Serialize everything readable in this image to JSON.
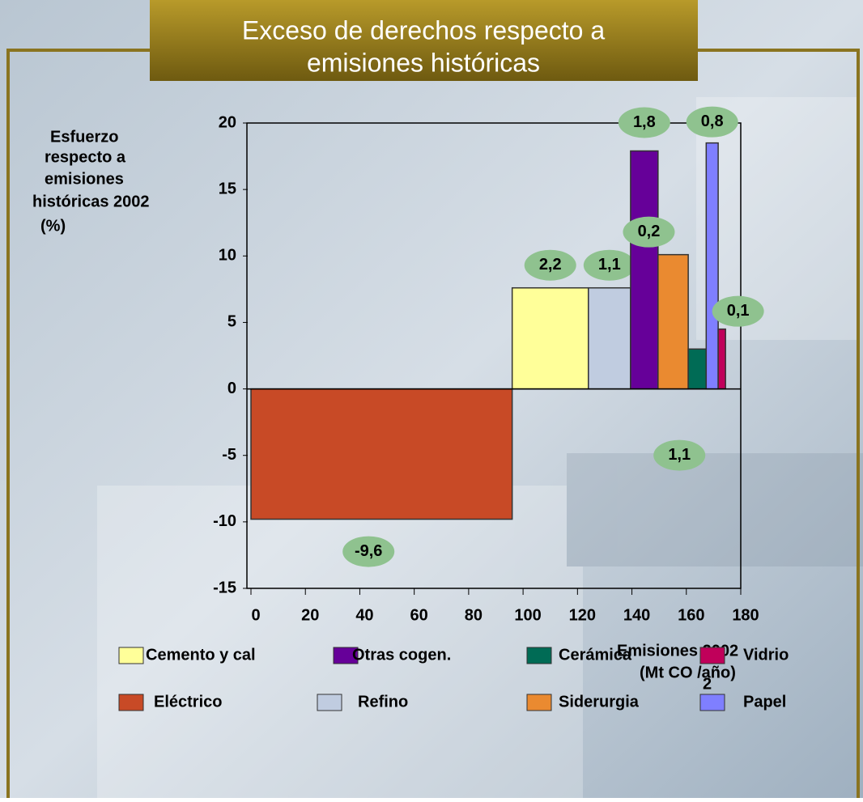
{
  "chart_data": {
    "type": "variable-width-bar",
    "title": [
      "Exceso de derechos respecto a",
      "emisiones históricas"
    ],
    "y_label": [
      "Esfuerzo",
      "respecto a",
      "emisiones",
      "históricas 2002",
      "(%)"
    ],
    "x_label": [
      "Emisiones 2002",
      "(Mt CO /año)",
      "2"
    ],
    "xlim": [
      0,
      180
    ],
    "xticks": [
      0,
      20,
      40,
      60,
      80,
      100,
      120,
      140,
      160,
      180
    ],
    "ylim": [
      -15,
      20
    ],
    "yticks": [
      -15,
      -10,
      -5,
      0,
      5,
      10,
      15,
      20
    ],
    "series": [
      {
        "name": "Eléctrico",
        "color": "#c84a26",
        "width": 96,
        "value": -9.8,
        "annotation": "-9,6"
      },
      {
        "name": "Cemento y cal",
        "color": "#ffff99",
        "width": 28,
        "value": 7.6,
        "annotation": "2,2"
      },
      {
        "name": "Refino",
        "color": "#c0cce0",
        "width": 15.5,
        "value": 7.6,
        "annotation": "1,1"
      },
      {
        "name": "Otras cogen.",
        "color": "#660099",
        "width": 10.1,
        "value": 17.9,
        "annotation": "1,8"
      },
      {
        "name": "Siderurgia",
        "color": "#ea8a30",
        "width": 11.1,
        "value": 10.1,
        "annotation": "0,2"
      },
      {
        "name": "Cerámica",
        "color": "#006b55",
        "width": 6.6,
        "value": 3.0,
        "annotation": "1,1"
      },
      {
        "name": "Papel",
        "color": "#7f7fff",
        "width": 4.4,
        "value": 18.5,
        "annotation": "0,8"
      },
      {
        "name": "Vidrio",
        "color": "#c0005a",
        "width": 2.7,
        "value": 4.5,
        "annotation": "0,1"
      }
    ]
  }
}
